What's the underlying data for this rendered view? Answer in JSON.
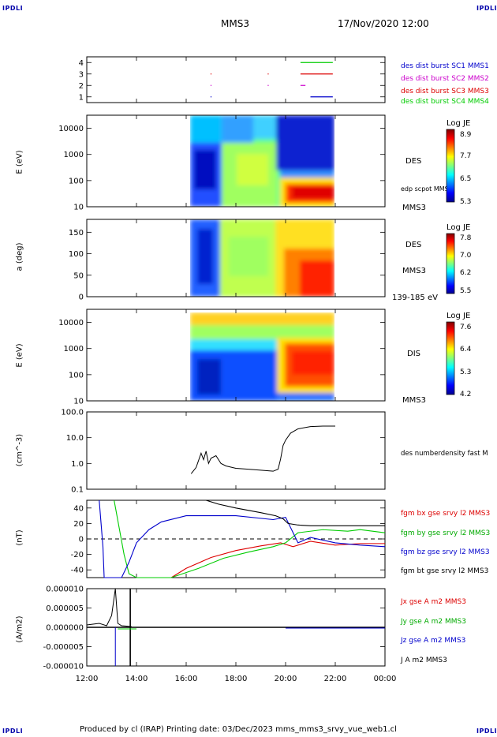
{
  "corners": {
    "tl": "IPDLI",
    "tr": "IPDLI",
    "bl": "IPDLI",
    "br": "IPDLI"
  },
  "header": {
    "spacecraft": "MMS3",
    "datetime": "17/Nov/2020 12:00"
  },
  "footer": {
    "text": "Produced by cl (IRAP)   Printing date: 03/Dec/2023   mms_mms3_srvy_vue_web1.cl"
  },
  "colors": {
    "black": "#000000",
    "blue": "#0000cc",
    "magenta": "#cc00cc",
    "red": "#dd0000",
    "green": "#00cc00"
  },
  "chart_data": [
    {
      "id": "burst",
      "type": "line",
      "ylim": [
        0.5,
        4.5
      ],
      "yticks": [
        "1",
        "2",
        "3",
        "4"
      ],
      "legend": [
        {
          "label": "des dist burst SC1 MMS1",
          "color": "#0000cc"
        },
        {
          "label": "des dist burst SC2 MMS2",
          "color": "#cc00cc"
        },
        {
          "label": "des dist burst SC3 MMS3",
          "color": "#dd0000"
        },
        {
          "label": "des dist burst SC4 MMS4",
          "color": "#00cc00"
        }
      ],
      "segments": [
        {
          "y": 4,
          "x": [
            20.6,
            21.9
          ],
          "color": "#00cc00"
        },
        {
          "y": 3,
          "x": [
            20.6,
            21.9
          ],
          "color": "#dd0000"
        },
        {
          "y": 2,
          "x": [
            20.6,
            20.8
          ],
          "color": "#cc00cc"
        },
        {
          "y": 1,
          "x": [
            21.0,
            21.9
          ],
          "color": "#0000cc"
        }
      ],
      "dots": [
        {
          "y": 3,
          "x": 17.0,
          "color": "#dd0000"
        },
        {
          "y": 3,
          "x": 19.3,
          "color": "#dd0000"
        },
        {
          "y": 2,
          "x": 17.0,
          "color": "#cc00cc"
        },
        {
          "y": 2,
          "x": 19.3,
          "color": "#cc00cc"
        },
        {
          "y": 1,
          "x": 17.0,
          "color": "#0000cc"
        }
      ]
    },
    {
      "id": "des_energy",
      "type": "heatmap",
      "ylabel": "E (eV)",
      "yscale": "log",
      "yticks": [
        "10",
        "100",
        "1000",
        "10000"
      ],
      "colorbar": {
        "title": "Log JE",
        "ticks": [
          "8.9",
          "7.7",
          "6.5",
          "5.3"
        ]
      },
      "instrument": "DES",
      "spacecraft": "MMS3",
      "note": "edp scpot MMS3"
    },
    {
      "id": "des_pitch",
      "type": "heatmap",
      "ylabel": "a (deg)",
      "ylim": [
        0,
        180
      ],
      "yticks": [
        "0",
        "50",
        "100",
        "150"
      ],
      "colorbar": {
        "title": "Log JE",
        "ticks": [
          "7.8",
          "7.0",
          "6.2",
          "5.5"
        ]
      },
      "instrument": "DES",
      "spacecraft": "MMS3",
      "note": "139-185 eV"
    },
    {
      "id": "dis_energy",
      "type": "heatmap",
      "ylabel": "E (eV)",
      "yscale": "log",
      "yticks": [
        "10",
        "100",
        "1000",
        "10000"
      ],
      "colorbar": {
        "title": "Log JE",
        "ticks": [
          "7.6",
          "6.4",
          "5.3",
          "4.2"
        ]
      },
      "instrument": "DIS",
      "spacecraft": "MMS3"
    },
    {
      "id": "density",
      "type": "line",
      "ylabel": "(cm^-3)",
      "yscale": "log",
      "yticks": [
        "0.1",
        "1.0",
        "10.0",
        "100.0"
      ],
      "series": [
        {
          "name": "des numberdensity fast M",
          "color": "#000000",
          "x": [
            16.2,
            16.4,
            16.6,
            16.7,
            16.8,
            16.9,
            17.0,
            17.2,
            17.4,
            17.6,
            18.0,
            18.5,
            19.0,
            19.5,
            19.7,
            19.8,
            19.9,
            20.0,
            20.2,
            20.5,
            21.0,
            21.5,
            22.0
          ],
          "y": [
            0.4,
            0.7,
            2.5,
            1.4,
            3.0,
            1.0,
            1.6,
            2.0,
            1.0,
            0.8,
            0.65,
            0.6,
            0.55,
            0.5,
            0.6,
            1.5,
            5.0,
            8.0,
            15,
            22,
            27,
            28,
            28
          ]
        }
      ]
    },
    {
      "id": "bfield",
      "type": "line",
      "ylabel": "(nT)",
      "ylim": [
        -50,
        50
      ],
      "yticks": [
        "-40",
        "-20",
        "0",
        "20",
        "40"
      ],
      "series": [
        {
          "name": "fgm bx gse srvy l2 MMS3",
          "color": "#dd0000",
          "x": [
            15.4,
            16.0,
            17.0,
            18.0,
            19.0,
            19.8,
            20.3,
            21.0,
            22.0,
            23.0,
            24.0
          ],
          "y": [
            -50,
            -38,
            -24,
            -15,
            -9,
            -5,
            -10,
            -3,
            -8,
            -6,
            -6
          ]
        },
        {
          "name": "fgm by gse srvy l2 MMS3",
          "color": "#00cc00",
          "x": [
            13.1,
            13.5,
            13.7,
            14.0,
            15.4,
            16.5,
            17.5,
            18.5,
            19.5,
            20.0,
            20.5,
            21.5,
            22.5,
            23.0,
            24.0
          ],
          "y": [
            50,
            -20,
            -45,
            -50,
            -50,
            -38,
            -25,
            -17,
            -10,
            -5,
            8,
            12,
            10,
            12,
            8
          ]
        },
        {
          "name": "fgm bz gse srvy l2 MMS3",
          "color": "#0000cc",
          "x": [
            12.5,
            12.65,
            12.7,
            13.0,
            13.4,
            13.7,
            14.0,
            14.5,
            15.0,
            16.0,
            18.0,
            19.5,
            20.0,
            20.5,
            21.0,
            22.0,
            23.0,
            24.0
          ],
          "y": [
            50,
            -10,
            -50,
            -50,
            -50,
            -30,
            -5,
            12,
            22,
            30,
            30,
            25,
            28,
            -5,
            2,
            -5,
            -8,
            -10
          ]
        },
        {
          "name": "fgm bt gse srvy l2 MMS3",
          "color": "#000000",
          "x": [
            16.8,
            17.3,
            18.0,
            19.0,
            19.6,
            19.9,
            20.1,
            20.5,
            21.0,
            22.0,
            23.0,
            24.0
          ],
          "y": [
            50,
            45,
            40,
            34,
            30,
            26,
            20,
            18,
            17,
            17,
            17,
            17
          ]
        }
      ]
    },
    {
      "id": "current",
      "type": "line",
      "ylabel": "(A/m2)",
      "ylim": [
        -1e-05,
        1e-05
      ],
      "yticks": [
        "-0.000010",
        "-0.000005",
        "0.000000",
        "0.000005",
        "0.000010"
      ],
      "xticks": [
        "12:00",
        "14:00",
        "16:00",
        "18:00",
        "20:00",
        "22:00",
        "00:00"
      ],
      "series": [
        {
          "name": "Jx gse A m2 MMS3",
          "color": "#dd0000"
        },
        {
          "name": "Jy gse A m2 MMS3",
          "color": "#00cc00"
        },
        {
          "name": "Jz gse A m2 MMS3",
          "color": "#0000cc"
        },
        {
          "name": "J A m2 MMS3",
          "color": "#000000"
        }
      ]
    }
  ]
}
